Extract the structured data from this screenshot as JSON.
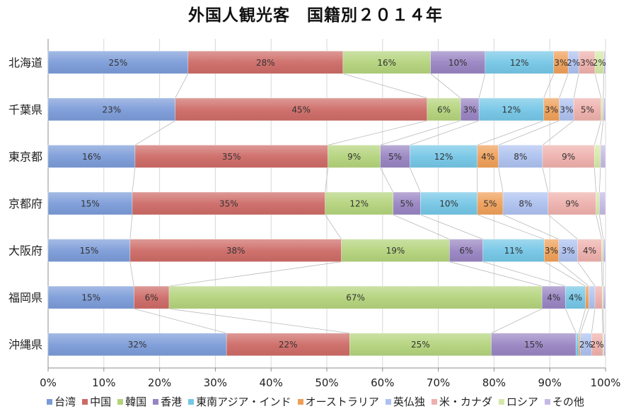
{
  "chart_data": {
    "type": "bar",
    "orientation": "horizontal",
    "stacking": "percent",
    "title": "外国人観光客　国籍別２０１４年",
    "categories": [
      "北海道",
      "千葉県",
      "東京都",
      "京都府",
      "大阪府",
      "福岡県",
      "沖縄県"
    ],
    "xlabel": "",
    "ylabel": "",
    "xlim": [
      0,
      100
    ],
    "xticks": [
      0,
      10,
      20,
      30,
      40,
      50,
      60,
      70,
      80,
      90,
      100
    ],
    "xtick_labels": [
      "0%",
      "10%",
      "20%",
      "30%",
      "40%",
      "50%",
      "60%",
      "70%",
      "80%",
      "90%",
      "100%"
    ],
    "grid": true,
    "legend": "bottom",
    "series": [
      {
        "name": "台湾",
        "color": "#7b9bd8",
        "values": [
          25.1,
          22.8,
          15.6,
          15.1,
          14.7,
          15.4,
          32.0
        ],
        "labels": [
          "25%",
          "23%",
          "16%",
          "15%",
          "15%",
          "15%",
          "32%"
        ]
      },
      {
        "name": "中国",
        "color": "#cd6a66",
        "values": [
          27.8,
          45.2,
          34.6,
          34.6,
          37.9,
          6.3,
          22.1
        ],
        "labels": [
          "28%",
          "45%",
          "35%",
          "35%",
          "38%",
          "6%",
          "22%"
        ]
      },
      {
        "name": "韓国",
        "color": "#b3d37b",
        "values": [
          15.7,
          6.0,
          9.4,
          12.2,
          19.4,
          66.9,
          25.4
        ],
        "labels": [
          "16%",
          "6%",
          "9%",
          "12%",
          "19%",
          "67%",
          "25%"
        ]
      },
      {
        "name": "香港",
        "color": "#9884c2",
        "values": [
          9.8,
          3.3,
          5.3,
          4.9,
          6.0,
          4.2,
          15.2
        ],
        "labels": [
          "10%",
          "3%",
          "5%",
          "5%",
          "6%",
          "4%",
          "15%"
        ]
      },
      {
        "name": "東南アジア・インド",
        "color": "#74c6e6",
        "values": [
          12.3,
          11.6,
          12.1,
          10.2,
          11.0,
          3.6,
          0.5
        ],
        "labels": [
          "12%",
          "12%",
          "12%",
          "10%",
          "11%",
          "4%",
          null
        ]
      },
      {
        "name": "オーストラリア",
        "color": "#ef9f58",
        "values": [
          2.6,
          2.8,
          3.8,
          4.6,
          2.6,
          0.6,
          0.3
        ],
        "labels": [
          "3%",
          "3%",
          "4%",
          "5%",
          "3%",
          null,
          null
        ]
      },
      {
        "name": "英仏独",
        "color": "#adc1ef",
        "values": [
          1.9,
          2.6,
          7.9,
          8.1,
          3.4,
          1.1,
          2.0
        ],
        "labels": [
          "2%",
          "3%",
          "8%",
          "8%",
          "3%",
          null,
          "2%"
        ]
      },
      {
        "name": "米・カナダ",
        "color": "#eeb0ac",
        "values": [
          2.9,
          4.9,
          9.3,
          8.6,
          4.3,
          1.3,
          2.0
        ],
        "labels": [
          "3%",
          "5%",
          "9%",
          "9%",
          "4%",
          null,
          "2%"
        ]
      },
      {
        "name": "ロシア",
        "color": "#d4e8a6",
        "values": [
          1.6,
          0.4,
          1.1,
          0.6,
          0.3,
          0.2,
          0.2
        ],
        "labels": [
          "2%",
          null,
          null,
          null,
          null,
          null,
          null
        ]
      },
      {
        "name": "その他",
        "color": "#c4b9e4",
        "values": [
          0.3,
          0.4,
          0.9,
          1.1,
          0.4,
          0.4,
          0.3
        ],
        "labels": [
          null,
          null,
          null,
          null,
          null,
          null,
          null
        ]
      }
    ]
  }
}
